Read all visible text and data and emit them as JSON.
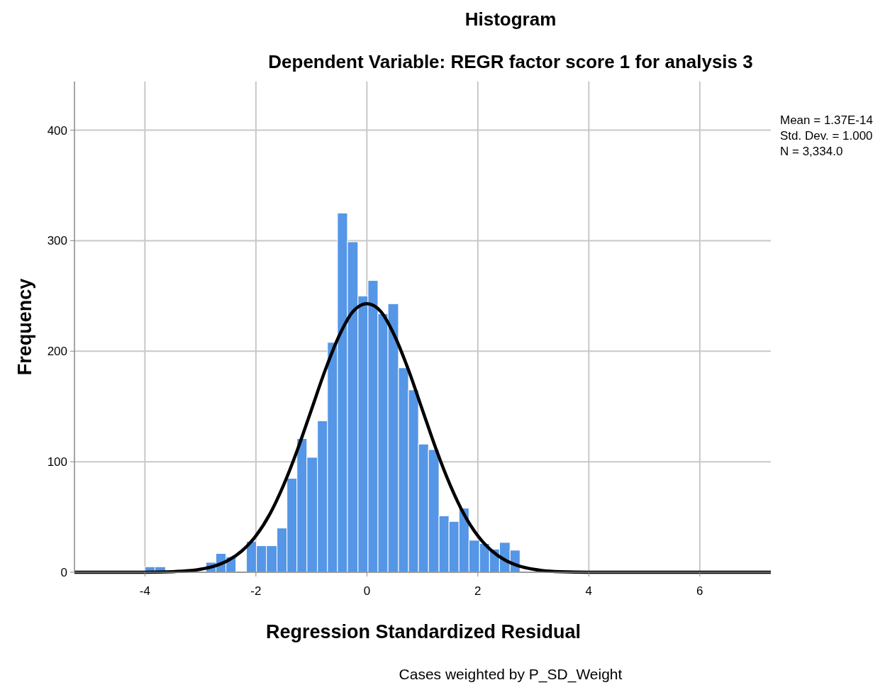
{
  "chart_data": {
    "type": "histogram",
    "title": "Histogram",
    "subtitle": "Dependent Variable: REGR factor score   1 for analysis 3",
    "xlabel": "Regression Standardized Residual",
    "ylabel": "Frequency",
    "annotations": [
      "Mean = 1.37E-14",
      "Std. Dev. = 1.000",
      "N = 3,334.0",
      "Cases weighted by P_SD_Weight"
    ],
    "xlim": [
      -5.27,
      7.28
    ],
    "ylim": [
      0,
      444
    ],
    "xticks": [
      -4,
      -2,
      0,
      2,
      4,
      6
    ],
    "yticks": [
      0,
      100,
      200,
      300,
      400
    ],
    "grid": true,
    "series": [
      {
        "color": "#5596e6",
        "bins": [
          -4.0,
          -3.82,
          -3.63,
          -2.9,
          -2.72,
          -2.54,
          -2.36,
          -2.17,
          -1.99,
          -1.81,
          -1.62,
          -1.44,
          -1.26,
          -1.08,
          -0.89,
          -0.71,
          -0.53,
          -0.35,
          -0.16,
          0.02,
          0.2,
          0.38,
          0.57,
          0.75,
          0.93,
          1.11,
          1.3,
          1.48,
          1.66,
          1.84,
          2.03,
          2.21,
          2.39,
          2.58,
          2.76
        ],
        "values": [
          5,
          5,
          0,
          9,
          17,
          14,
          null,
          28,
          24,
          24,
          40,
          85,
          121,
          104,
          137,
          208,
          325,
          299,
          250,
          264,
          234,
          243,
          185,
          165,
          116,
          111,
          51,
          46,
          58,
          29,
          26,
          21,
          27,
          20
        ]
      },
      {
        "type": "line",
        "color": "#000000",
        "x": [
          -5.27,
          -4,
          -3.5,
          -3,
          -2.75,
          -2.5,
          -2.25,
          -2,
          -1.75,
          -1.5,
          -1.25,
          -1,
          -0.75,
          -0.5,
          -0.25,
          0,
          0.25,
          0.5,
          0.75,
          1,
          1.25,
          1.5,
          1.75,
          2,
          2.25,
          2.5,
          2.75,
          3,
          3.5,
          4,
          5,
          6,
          7.28
        ],
        "values": [
          0,
          0,
          0.5,
          2.7,
          5.5,
          10.7,
          19.4,
          32.9,
          52.5,
          79,
          111,
          147,
          183,
          214,
          236,
          243,
          236,
          214,
          183,
          147,
          111,
          79,
          52.5,
          32.9,
          19.4,
          10.7,
          5.5,
          2.7,
          0.5,
          0,
          0,
          0,
          0
        ]
      }
    ]
  }
}
